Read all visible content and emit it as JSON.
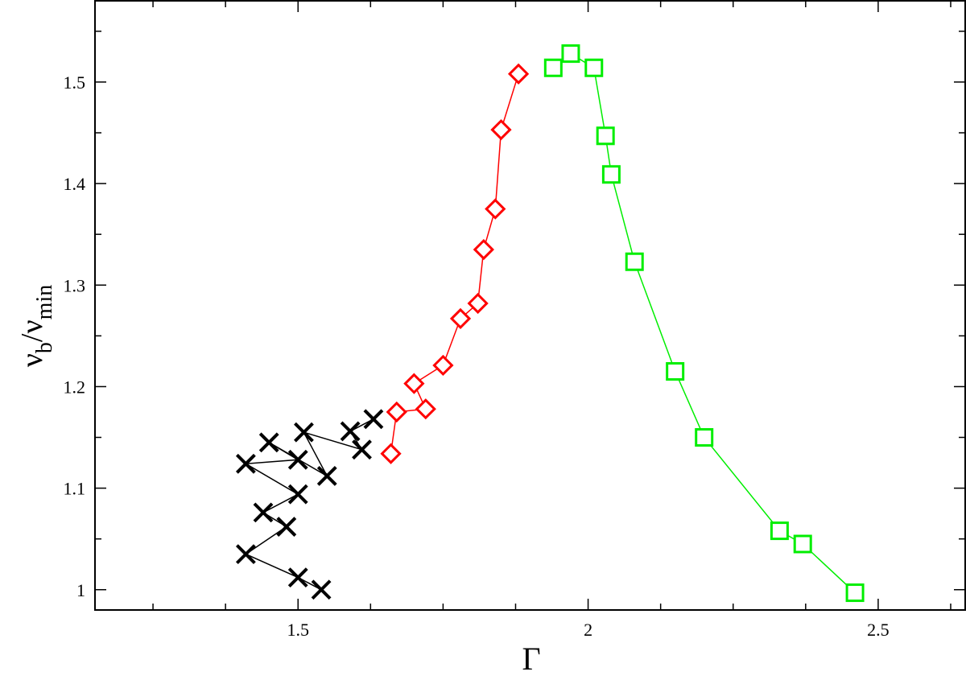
{
  "chart_data": {
    "type": "scatter",
    "xlabel": "Γ",
    "ylabel": {
      "main": "ν",
      "sub1": "b",
      "sep": "/",
      "main2": "ν",
      "sub2": "min"
    },
    "xlim": [
      1.15,
      2.65
    ],
    "ylim": [
      0.98,
      1.58
    ],
    "xticks": [
      {
        "value": 1.5,
        "label": "1.5"
      },
      {
        "value": 2.0,
        "label": "2"
      },
      {
        "value": 2.5,
        "label": "2.5"
      }
    ],
    "yticks": [
      {
        "value": 1.0,
        "label": "1"
      },
      {
        "value": 1.1,
        "label": "1.1"
      },
      {
        "value": 1.2,
        "label": "1.2"
      },
      {
        "value": 1.3,
        "label": "1.3"
      },
      {
        "value": 1.4,
        "label": "1.4"
      },
      {
        "value": 1.5,
        "label": "1.5"
      }
    ],
    "grid": false,
    "series": [
      {
        "marker": "x",
        "color": "#000000",
        "points": [
          [
            1.54,
            1.0
          ],
          [
            1.5,
            1.012
          ],
          [
            1.41,
            1.035
          ],
          [
            1.48,
            1.062
          ],
          [
            1.44,
            1.076
          ],
          [
            1.5,
            1.094
          ],
          [
            1.41,
            1.124
          ],
          [
            1.5,
            1.128
          ],
          [
            1.45,
            1.145
          ],
          [
            1.55,
            1.112
          ],
          [
            1.51,
            1.155
          ],
          [
            1.61,
            1.138
          ],
          [
            1.59,
            1.156
          ],
          [
            1.63,
            1.168
          ]
        ]
      },
      {
        "marker": "diamond",
        "color": "#ff0000",
        "points": [
          [
            1.66,
            1.134
          ],
          [
            1.67,
            1.175
          ],
          [
            1.72,
            1.178
          ],
          [
            1.7,
            1.203
          ],
          [
            1.75,
            1.221
          ],
          [
            1.78,
            1.267
          ],
          [
            1.81,
            1.282
          ],
          [
            1.82,
            1.335
          ],
          [
            1.84,
            1.375
          ],
          [
            1.85,
            1.453
          ],
          [
            1.88,
            1.508
          ]
        ]
      },
      {
        "marker": "square",
        "color": "#00ee00",
        "points": [
          [
            1.94,
            1.514
          ],
          [
            1.97,
            1.528
          ],
          [
            2.01,
            1.514
          ],
          [
            2.03,
            1.447
          ],
          [
            2.04,
            1.409
          ],
          [
            2.08,
            1.323
          ],
          [
            2.15,
            1.215
          ],
          [
            2.2,
            1.15
          ],
          [
            2.33,
            1.058
          ],
          [
            2.37,
            1.045
          ],
          [
            2.46,
            0.997
          ]
        ]
      }
    ]
  }
}
